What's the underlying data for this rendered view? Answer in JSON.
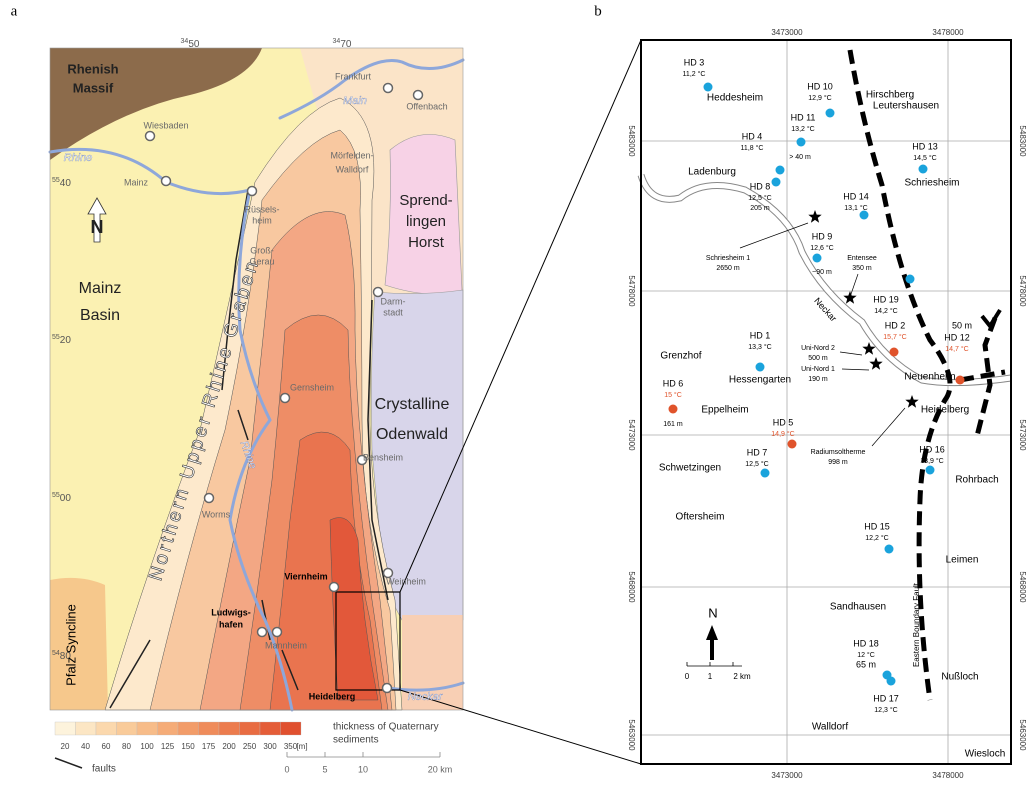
{
  "panel_a": {
    "label": "a",
    "grid_x": [
      {
        "sup": "34",
        "main": "50"
      },
      {
        "sup": "34",
        "main": "70"
      }
    ],
    "grid_y": [
      {
        "sup": "55",
        "main": "40"
      },
      {
        "sup": "55",
        "main": "20"
      },
      {
        "sup": "55",
        "main": "00"
      },
      {
        "sup": "54",
        "main": "80"
      }
    ],
    "regions": [
      [
        "Rhenish",
        "Massif"
      ],
      [
        "Mainz",
        "Basin"
      ],
      [
        "Sprend-",
        "lingen",
        "Horst"
      ],
      [
        "Crystalline",
        "Odenwald"
      ],
      [
        "Pfalz Syncline"
      ]
    ],
    "graben": "Northern Upper Rhine Graben",
    "towns": [
      [
        "Frankfurt"
      ],
      [
        "Offenbach"
      ],
      [
        "Wiesbaden"
      ],
      [
        "Mainz"
      ],
      [
        "Mörfelden-",
        "Walldorf"
      ],
      [
        "Rüssels-",
        "heim"
      ],
      [
        "Groß-",
        "Gerau"
      ],
      [
        "Darm-",
        "stadt"
      ],
      [
        "Gernsheim"
      ],
      [
        "Bensheim"
      ],
      [
        "Worms"
      ],
      [
        "Weinheim"
      ],
      [
        "Viernheim"
      ],
      [
        "Ludwigs-",
        "hafen"
      ],
      [
        "Mannheim"
      ],
      [
        "Heidelberg"
      ]
    ],
    "rivers": [
      "Main",
      "Rhine",
      "Rhine",
      "Neckar"
    ],
    "north": "N",
    "legend": {
      "classes": [
        20,
        40,
        60,
        80,
        100,
        125,
        150,
        175,
        200,
        250,
        300,
        350
      ],
      "colors": [
        "#fdf3dc",
        "#fce6c4",
        "#fbd8ad",
        "#f9cb9a",
        "#f7bc89",
        "#f5ac78",
        "#f29c69",
        "#ef8c5b",
        "#ec7c4e",
        "#e86c42",
        "#e45d38",
        "#e0502f"
      ],
      "unit": "[m]",
      "title": [
        "thickness of Quaternary",
        "sediments"
      ],
      "faults": "faults"
    },
    "scale": [
      "0",
      "5",
      "10",
      "20 km"
    ]
  },
  "panel_b": {
    "label": "b",
    "eastings": [
      "3473000",
      "3478000"
    ],
    "northings": [
      "5483000",
      "5478000",
      "5473000",
      "5468000",
      "5463000"
    ],
    "wells": [
      {
        "label": "HD 3",
        "temp": "11,2 °C",
        "color": "#1aa3dc"
      },
      {
        "label": "HD 10",
        "temp": "12,9 °C",
        "color": "#1aa3dc"
      },
      {
        "label": "HD 11",
        "temp": "13,2 °C",
        "depth": "> 40 m",
        "color": "#1aa3dc"
      },
      {
        "label": "HD 4",
        "temp": "11,8 °C",
        "color": "#1aa3dc"
      },
      {
        "label": "HD 13",
        "temp": "14,5 °C",
        "color": "#1aa3dc"
      },
      {
        "label": "HD 8",
        "temp": "12,5 °C",
        "depth": "205 m",
        "color": "#1aa3dc"
      },
      {
        "label": "HD 14",
        "temp": "13,1 °C",
        "color": "#1aa3dc"
      },
      {
        "label": "HD 9",
        "temp": "12,6 °C",
        "depth": "~90 m",
        "color": "#1aa3dc"
      },
      {
        "label": "HD 19",
        "temp": "14,2 °C",
        "color": "#1aa3dc"
      },
      {
        "label": "HD 2",
        "temp": "15,7 °C",
        "color": "#e0532b"
      },
      {
        "label": "HD 12",
        "temp": "14,7 °C",
        "depth": "50 m",
        "color": "#e0532b"
      },
      {
        "label": "HD 1",
        "temp": "13,3 °C",
        "color": "#1aa3dc"
      },
      {
        "label": "HD 6",
        "temp": "15 °C",
        "depth": "161 m",
        "color": "#e0532b"
      },
      {
        "label": "HD 5",
        "temp": "14,9 °C",
        "color": "#e0532b"
      },
      {
        "label": "HD 7",
        "temp": "12,5 °C",
        "color": "#1aa3dc"
      },
      {
        "label": "HD 16",
        "temp": "13,9 °C",
        "color": "#1aa3dc"
      },
      {
        "label": "HD 15",
        "temp": "12,2 °C",
        "color": "#1aa3dc"
      },
      {
        "label": "HD 18",
        "temp": "12 °C",
        "depth": "65 m",
        "color": "#1aa3dc"
      },
      {
        "label": "HD 17",
        "temp": "12,3 °C",
        "color": "#1aa3dc"
      }
    ],
    "boreholes": [
      {
        "name": "Schriesheim 1",
        "depth": "2650 m"
      },
      {
        "name": "Entensee",
        "depth": "350 m"
      },
      {
        "name": "Uni-Nord 2",
        "depth": "500 m"
      },
      {
        "name": "Uni-Nord 1",
        "depth": "190 m"
      },
      {
        "name": "Radiumsoltherme",
        "depth": "998 m"
      }
    ],
    "places": [
      "Heddesheim",
      "Hirschberg",
      "Leutershausen",
      "Ladenburg",
      "Schriesheim",
      "Grenzhof",
      "Hessengarten",
      "Neuenheim",
      "Heidelberg",
      "Eppelheim",
      "Schwetzingen",
      "Oftersheim",
      "Rohrbach",
      "Leimen",
      "Sandhausen",
      "Nußloch",
      "Walldorf",
      "Wiesloch"
    ],
    "river": "Neckar",
    "fault": "Eastern Boundary Fault",
    "north": "N",
    "scale": [
      "0",
      "1",
      "2 km"
    ]
  }
}
